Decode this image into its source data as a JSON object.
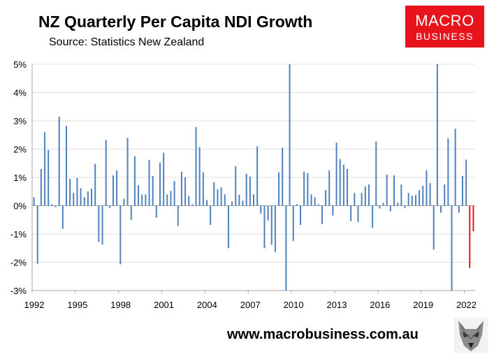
{
  "header": {
    "title": "NZ Quarterly Per Capita NDI Growth",
    "subtitle": "Source: Statistics New Zealand"
  },
  "logo": {
    "line1": "MACRO",
    "line2": "BUSINESS",
    "color": "#e8141b"
  },
  "footer": {
    "url": "www.macrobusiness.com.au",
    "icon": "wolf-head-icon"
  },
  "colors": {
    "bar": "#4f81bd",
    "highlight": "#e8141b",
    "grid": "#e0e0e0",
    "axis": "#a6a6a6"
  },
  "chart_data": {
    "type": "bar",
    "title": "NZ Quarterly Per Capita NDI Growth",
    "subtitle": "Source: Statistics New Zealand",
    "xlabel": "",
    "ylabel": "",
    "ylim": [
      -3,
      5
    ],
    "yticks": [
      "5%",
      "4%",
      "3%",
      "2%",
      "1%",
      "0%",
      "-1%",
      "-2%",
      "-3%"
    ],
    "xticks": [
      "1992",
      "1995",
      "1998",
      "2001",
      "2004",
      "2007",
      "2010",
      "2013",
      "2016",
      "2019",
      "2022"
    ],
    "start_period": "1992 Q1",
    "grid": true,
    "legend": "none",
    "series": [
      {
        "values": [
          0.3,
          -2.05,
          1.3,
          2.6,
          1.97,
          0.05,
          -0.05,
          3.15,
          -0.82,
          2.82,
          0.95,
          0.45,
          0.98,
          0.62,
          0.3,
          0.5,
          0.6,
          1.48,
          -1.28,
          -1.38,
          2.33,
          -0.08,
          1.07,
          1.25,
          -2.07,
          0.25,
          2.4,
          -0.5,
          1.75,
          0.72,
          0.4,
          0.4,
          1.62,
          1.05,
          -0.42,
          1.52,
          1.87,
          0.4,
          0.52,
          0.87,
          -0.72,
          1.2,
          1.0,
          0.35,
          0.05,
          2.78,
          2.07,
          1.18,
          0.2,
          -0.68,
          0.83,
          0.58,
          0.65,
          0.4,
          -1.5,
          0.15,
          1.4,
          0.38,
          0.18,
          1.13,
          1.03,
          0.4,
          2.1,
          -0.28,
          -1.5,
          -0.52,
          -1.38,
          -1.63,
          1.18,
          2.05,
          -3.0,
          5.0,
          -1.25,
          0.05,
          -0.68,
          1.2,
          1.15,
          0.4,
          0.3,
          0.05,
          -0.65,
          0.55,
          1.25,
          -0.35,
          2.23,
          1.65,
          1.45,
          1.3,
          -0.55,
          0.45,
          -0.58,
          0.45,
          0.68,
          0.75,
          -0.78,
          2.27,
          -0.1,
          0.1,
          1.1,
          -0.2,
          1.07,
          0.1,
          0.75,
          -0.08,
          0.45,
          0.35,
          0.38,
          0.55,
          0.7,
          1.25,
          0.8,
          -1.55,
          5.0,
          -0.25,
          0.75,
          2.38,
          -3.0,
          2.72,
          -0.25,
          1.05,
          1.63,
          -2.2,
          -0.9
        ],
        "highlight_last": 2
      }
    ]
  }
}
